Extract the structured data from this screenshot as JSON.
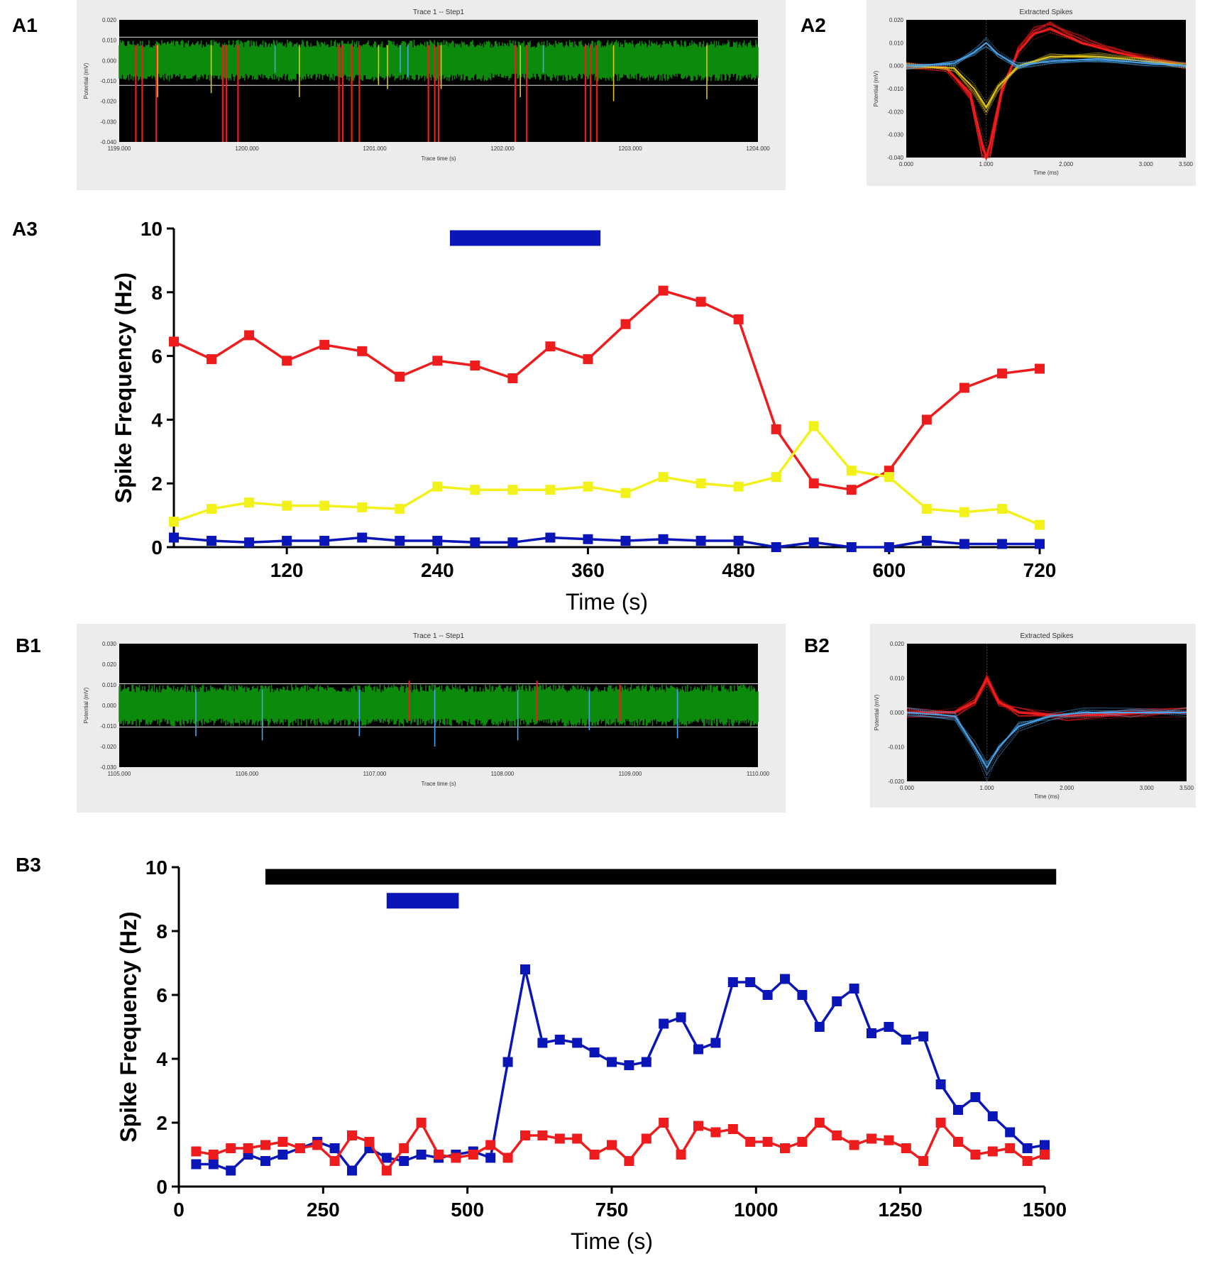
{
  "panel_labels": {
    "a1": "A1",
    "a2": "A2",
    "a3": "A3",
    "b1": "B1",
    "b2": "B2",
    "b3": "B3"
  },
  "colors": {
    "red": "#ee1c1c",
    "yellow": "#f2f21a",
    "blue": "#0b16b8",
    "black": "#000000",
    "trace_green": "#0c8a0c",
    "trace_blue": "#4aa3e8",
    "trace_yellow": "#e0c418"
  },
  "chart_data": [
    {
      "id": "A1",
      "type": "line",
      "title": "Trace 1 -- Step1",
      "xlabel": "Trace time (s)",
      "ylabel": "Potential (mV)",
      "xlim": [
        1199,
        1204
      ],
      "ylim": [
        -0.04,
        0.02
      ],
      "x_ticks": [
        "1199.000",
        "1200.000",
        "1201.000",
        "1202.000",
        "1203.000",
        "1204.000"
      ],
      "y_ticks": [
        "0.020",
        "0.010",
        "0.000",
        "-0.010",
        "-0.020",
        "-0.030",
        "-0.040"
      ],
      "thresholds": [
        0.0115,
        -0.0122
      ],
      "noise_band": [
        -0.0085,
        0.0085
      ],
      "spikes": [
        {
          "t": 1199.13,
          "unit": "red",
          "amp": -0.04
        },
        {
          "t": 1199.18,
          "unit": "red",
          "amp": -0.04
        },
        {
          "t": 1199.29,
          "unit": "red",
          "amp": -0.04
        },
        {
          "t": 1199.3,
          "unit": "yellow",
          "amp": -0.018
        },
        {
          "t": 1199.72,
          "unit": "yellow",
          "amp": -0.016
        },
        {
          "t": 1199.81,
          "unit": "red",
          "amp": -0.04
        },
        {
          "t": 1199.84,
          "unit": "red",
          "amp": -0.04
        },
        {
          "t": 1199.93,
          "unit": "red",
          "amp": -0.04
        },
        {
          "t": 1200.22,
          "unit": "blue",
          "amp": -0.006
        },
        {
          "t": 1200.41,
          "unit": "yellow",
          "amp": -0.018
        },
        {
          "t": 1200.72,
          "unit": "red",
          "amp": -0.04
        },
        {
          "t": 1200.75,
          "unit": "red",
          "amp": -0.04
        },
        {
          "t": 1200.82,
          "unit": "red",
          "amp": -0.04
        },
        {
          "t": 1200.88,
          "unit": "red",
          "amp": -0.04
        },
        {
          "t": 1201.03,
          "unit": "yellow",
          "amp": -0.012
        },
        {
          "t": 1201.1,
          "unit": "yellow",
          "amp": -0.014
        },
        {
          "t": 1201.2,
          "unit": "blue",
          "amp": -0.006
        },
        {
          "t": 1201.26,
          "unit": "blue",
          "amp": -0.008
        },
        {
          "t": 1201.42,
          "unit": "red",
          "amp": -0.04
        },
        {
          "t": 1201.47,
          "unit": "red",
          "amp": -0.04
        },
        {
          "t": 1201.5,
          "unit": "red",
          "amp": -0.04
        },
        {
          "t": 1201.52,
          "unit": "yellow",
          "amp": -0.014
        },
        {
          "t": 1202.1,
          "unit": "red",
          "amp": -0.04
        },
        {
          "t": 1202.14,
          "unit": "yellow",
          "amp": -0.018
        },
        {
          "t": 1202.19,
          "unit": "red",
          "amp": -0.04
        },
        {
          "t": 1202.32,
          "unit": "blue",
          "amp": -0.006
        },
        {
          "t": 1202.65,
          "unit": "red",
          "amp": -0.04
        },
        {
          "t": 1202.69,
          "unit": "red",
          "amp": -0.04
        },
        {
          "t": 1202.74,
          "unit": "red",
          "amp": -0.04
        },
        {
          "t": 1202.87,
          "unit": "yellow",
          "amp": -0.02
        },
        {
          "t": 1203.6,
          "unit": "yellow",
          "amp": -0.019
        }
      ]
    },
    {
      "id": "A2",
      "type": "line",
      "title": "Extracted Spikes",
      "xlabel": "Time (ms)",
      "ylabel": "Potential (mV)",
      "xlim": [
        0,
        3.5
      ],
      "ylim": [
        -0.04,
        0.02
      ],
      "x_ticks": [
        "0.000",
        "1.000",
        "2.000",
        "3.000",
        "3.500"
      ],
      "y_ticks": [
        "0.020",
        "0.010",
        "0.000",
        "-0.010",
        "-0.020",
        "-0.030",
        "-0.040"
      ],
      "series": [
        {
          "name": "red unit",
          "color": "red",
          "x": [
            0,
            0.5,
            0.8,
            0.95,
            1.0,
            1.05,
            1.2,
            1.4,
            1.6,
            1.8,
            2.2,
            2.6,
            3.0,
            3.5
          ],
          "y": [
            0,
            -0.001,
            -0.012,
            -0.034,
            -0.04,
            -0.034,
            -0.01,
            0.006,
            0.014,
            0.016,
            0.01,
            0.006,
            0.003,
            0
          ]
        },
        {
          "name": "yellow unit",
          "color": "yellow",
          "x": [
            0,
            0.6,
            0.85,
            1.0,
            1.15,
            1.4,
            1.8,
            2.4,
            3.0,
            3.5
          ],
          "y": [
            0,
            -0.001,
            -0.01,
            -0.018,
            -0.009,
            0.0,
            0.004,
            0.004,
            0.002,
            0
          ]
        },
        {
          "name": "blue unit",
          "color": "blue",
          "x": [
            0,
            0.6,
            0.85,
            1.0,
            1.15,
            1.4,
            1.8,
            2.4,
            3.0,
            3.5
          ],
          "y": [
            0,
            0.001,
            0.006,
            0.01,
            0.005,
            0.0,
            0.002,
            0.003,
            0.001,
            0
          ]
        }
      ]
    },
    {
      "id": "A3",
      "type": "line",
      "xlabel": "Time (s)",
      "ylabel": "Spike Frequency (Hz)",
      "xlim": [
        30,
        720
      ],
      "ylim": [
        0,
        10
      ],
      "x_ticks": [
        120,
        240,
        360,
        480,
        600,
        720
      ],
      "y_ticks": [
        0,
        2,
        4,
        6,
        8,
        10
      ],
      "bars": [
        {
          "color": "blue",
          "x0": 250,
          "x1": 370,
          "y": 9.7
        }
      ],
      "x": [
        30,
        60,
        90,
        120,
        150,
        180,
        210,
        240,
        270,
        300,
        330,
        360,
        390,
        420,
        450,
        480,
        510,
        540,
        570,
        600,
        630,
        660,
        690,
        720
      ],
      "series": [
        {
          "name": "red",
          "color": "red",
          "values": [
            6.45,
            5.9,
            6.65,
            5.85,
            6.35,
            6.15,
            5.35,
            5.85,
            5.7,
            5.3,
            6.3,
            5.9,
            7.0,
            8.05,
            7.7,
            7.15,
            3.7,
            2.0,
            1.8,
            2.4,
            4.0,
            5.0,
            5.45,
            5.6
          ]
        },
        {
          "name": "yellow",
          "color": "yellow",
          "values": [
            0.8,
            1.2,
            1.4,
            1.3,
            1.3,
            1.25,
            1.2,
            1.9,
            1.8,
            1.8,
            1.8,
            1.9,
            1.7,
            2.2,
            2.0,
            1.9,
            2.2,
            3.8,
            2.4,
            2.2,
            1.2,
            1.1,
            1.2,
            0.7
          ]
        },
        {
          "name": "blue",
          "color": "blue",
          "values": [
            0.3,
            0.2,
            0.15,
            0.2,
            0.2,
            0.3,
            0.2,
            0.2,
            0.15,
            0.15,
            0.3,
            0.25,
            0.2,
            0.25,
            0.2,
            0.2,
            0.0,
            0.15,
            0.0,
            0.0,
            0.2,
            0.1,
            0.1,
            0.1
          ]
        }
      ]
    },
    {
      "id": "B1",
      "type": "line",
      "title": "Trace 1 -- Step1",
      "xlabel": "Trace time (s)",
      "ylabel": "Potential (mV)",
      "xlim": [
        1105,
        1110
      ],
      "ylim": [
        -0.03,
        0.03
      ],
      "x_ticks": [
        "1105.000",
        "1106.000",
        "1107.000",
        "1108.000",
        "1109.000",
        "1110.000"
      ],
      "y_ticks": [
        "0.030",
        "0.020",
        "0.010",
        "0.000",
        "-0.010",
        "-0.020",
        "-0.030"
      ],
      "thresholds": [
        0.0105,
        -0.0105
      ],
      "noise_band": [
        -0.0085,
        0.0085
      ],
      "spikes": [
        {
          "t": 1105.6,
          "unit": "blue",
          "amp": -0.015
        },
        {
          "t": 1106.12,
          "unit": "blue",
          "amp": -0.017
        },
        {
          "t": 1106.88,
          "unit": "blue",
          "amp": -0.015
        },
        {
          "t": 1107.27,
          "unit": "red",
          "amp": 0.012
        },
        {
          "t": 1107.47,
          "unit": "blue",
          "amp": -0.02
        },
        {
          "t": 1108.12,
          "unit": "blue",
          "amp": -0.017
        },
        {
          "t": 1108.27,
          "unit": "red",
          "amp": 0.012
        },
        {
          "t": 1108.68,
          "unit": "blue",
          "amp": -0.012
        },
        {
          "t": 1108.92,
          "unit": "red",
          "amp": 0.01
        },
        {
          "t": 1109.37,
          "unit": "blue",
          "amp": -0.016
        }
      ]
    },
    {
      "id": "B2",
      "type": "line",
      "title": "Extracted Spikes",
      "xlabel": "Time (ms)",
      "ylabel": "Potential (mV)",
      "xlim": [
        0,
        3.5
      ],
      "ylim": [
        -0.02,
        0.02
      ],
      "x_ticks": [
        "0.000",
        "1.000",
        "2.000",
        "3.000",
        "3.500"
      ],
      "y_ticks": [
        "0.020",
        "0.010",
        "0.000",
        "-0.010",
        "-0.020"
      ],
      "series": [
        {
          "name": "red unit",
          "color": "red",
          "x": [
            0,
            0.6,
            0.85,
            1.0,
            1.15,
            1.4,
            2.0,
            3.0,
            3.5
          ],
          "y": [
            0,
            0.0,
            0.003,
            0.01,
            0.003,
            0.0,
            -0.001,
            0.0,
            0
          ]
        },
        {
          "name": "blue unit",
          "color": "blue",
          "x": [
            0,
            0.6,
            0.85,
            1.0,
            1.15,
            1.4,
            1.8,
            2.2,
            2.8,
            3.5
          ],
          "y": [
            0,
            -0.001,
            -0.01,
            -0.016,
            -0.01,
            -0.004,
            -0.001,
            0.0,
            0.0,
            0
          ]
        }
      ]
    },
    {
      "id": "B3",
      "type": "line",
      "xlabel": "Time (s)",
      "ylabel": "Spike Frequency (Hz)",
      "xlim": [
        0,
        1500
      ],
      "ylim": [
        0,
        10
      ],
      "x_ticks": [
        0,
        250,
        500,
        750,
        1000,
        1250,
        1500
      ],
      "y_ticks": [
        0,
        2,
        4,
        6,
        8,
        10
      ],
      "bars": [
        {
          "color": "black",
          "x0": 150,
          "x1": 1520,
          "y": 9.7
        },
        {
          "color": "blue",
          "x0": 360,
          "x1": 485,
          "y": 8.95
        }
      ],
      "x": [
        30,
        60,
        90,
        120,
        150,
        180,
        210,
        240,
        270,
        300,
        330,
        360,
        390,
        420,
        450,
        480,
        510,
        540,
        570,
        600,
        630,
        660,
        690,
        720,
        750,
        780,
        810,
        840,
        870,
        900,
        930,
        960,
        990,
        1020,
        1050,
        1080,
        1110,
        1140,
        1170,
        1200,
        1230,
        1260,
        1290,
        1320,
        1350,
        1380,
        1410,
        1440,
        1470,
        1500
      ],
      "series": [
        {
          "name": "blue",
          "color": "blue",
          "values": [
            0.7,
            0.7,
            0.5,
            1.0,
            0.8,
            1.0,
            1.2,
            1.4,
            1.2,
            0.5,
            1.2,
            0.9,
            0.8,
            1.0,
            0.9,
            1.0,
            1.1,
            0.9,
            3.9,
            6.8,
            4.5,
            4.6,
            4.5,
            4.2,
            3.9,
            3.8,
            3.9,
            5.1,
            5.3,
            4.3,
            4.5,
            6.4,
            6.4,
            6.0,
            6.5,
            6.0,
            5.0,
            5.8,
            6.2,
            4.8,
            5.0,
            4.6,
            4.7,
            3.2,
            2.4,
            2.8,
            2.2,
            1.7,
            1.2,
            1.3
          ]
        },
        {
          "name": "red",
          "color": "red",
          "values": [
            1.1,
            1.0,
            1.2,
            1.2,
            1.3,
            1.4,
            1.2,
            1.3,
            0.8,
            1.6,
            1.4,
            0.5,
            1.2,
            2.0,
            1.0,
            0.9,
            1.0,
            1.3,
            0.9,
            1.6,
            1.6,
            1.5,
            1.5,
            1.0,
            1.3,
            0.8,
            1.5,
            2.0,
            1.0,
            1.9,
            1.7,
            1.8,
            1.4,
            1.4,
            1.2,
            1.4,
            2.0,
            1.6,
            1.3,
            1.5,
            1.45,
            1.2,
            0.8,
            2.0,
            1.4,
            1.0,
            1.1,
            1.2,
            0.8,
            1.0
          ]
        }
      ]
    }
  ]
}
